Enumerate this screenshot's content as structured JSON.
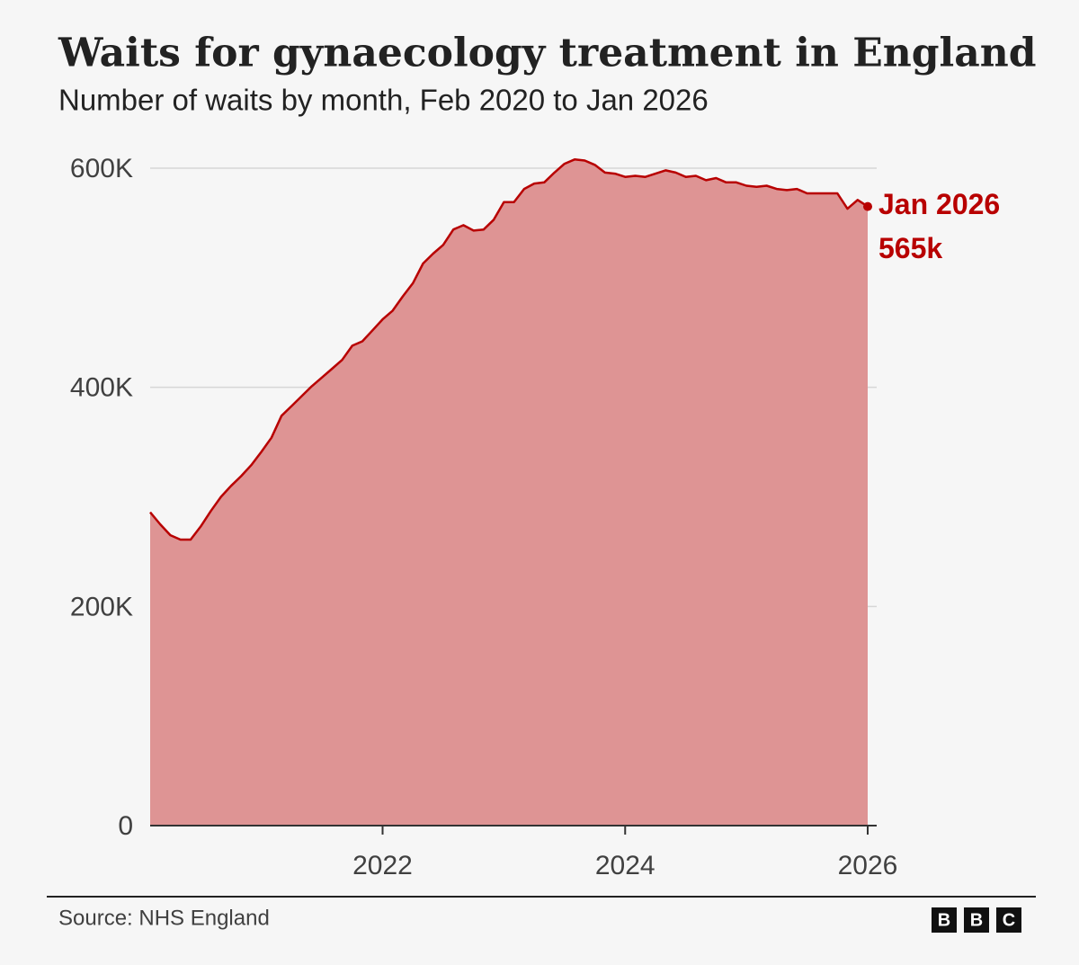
{
  "chart_data": {
    "type": "area",
    "title": "Waits for gynaecology treatment in England",
    "subtitle": "Number of waits by month, Feb 2020 to Jan 2026",
    "x": [
      "2020-02",
      "2020-03",
      "2020-04",
      "2020-05",
      "2020-06",
      "2020-07",
      "2020-08",
      "2020-09",
      "2020-10",
      "2020-11",
      "2020-12",
      "2021-01",
      "2021-02",
      "2021-03",
      "2021-04",
      "2021-05",
      "2021-06",
      "2021-07",
      "2021-08",
      "2021-09",
      "2021-10",
      "2021-11",
      "2021-12",
      "2022-01",
      "2022-02",
      "2022-03",
      "2022-04",
      "2022-05",
      "2022-06",
      "2022-07",
      "2022-08",
      "2022-09",
      "2022-10",
      "2022-11",
      "2022-12",
      "2023-01",
      "2023-02",
      "2023-03",
      "2023-04",
      "2023-05",
      "2023-06",
      "2023-07",
      "2023-08",
      "2023-09",
      "2023-10",
      "2023-11",
      "2023-12",
      "2024-01",
      "2024-02",
      "2024-03",
      "2024-04",
      "2024-05",
      "2024-06",
      "2024-07",
      "2024-08",
      "2024-09",
      "2024-10",
      "2024-11",
      "2024-12",
      "2025-01",
      "2025-02",
      "2025-03",
      "2025-04",
      "2025-05",
      "2025-06",
      "2025-07",
      "2025-08",
      "2025-09",
      "2025-10",
      "2025-11",
      "2025-12",
      "2026-01"
    ],
    "series": [
      {
        "name": "Waits",
        "color": "#b80000",
        "fill": "#de9494",
        "values": [
          286000,
          275000,
          265000,
          261000,
          261000,
          273000,
          287000,
          300000,
          310000,
          319000,
          329000,
          341000,
          354000,
          374000,
          383000,
          392000,
          401000,
          409000,
          417000,
          425000,
          438000,
          442000,
          452000,
          462000,
          470000,
          483000,
          495000,
          513000,
          522000,
          530000,
          544000,
          548000,
          543000,
          544000,
          553000,
          569000,
          569000,
          581000,
          586000,
          587000,
          596000,
          604000,
          608000,
          607000,
          603000,
          596000,
          595000,
          592000,
          593000,
          592000,
          595000,
          598000,
          596000,
          592000,
          593000,
          589000,
          591000,
          587000,
          587000,
          584000,
          583000,
          584000,
          581000,
          580000,
          581000,
          577000,
          577000,
          577000,
          577000,
          563000,
          571000,
          565000
        ]
      }
    ],
    "end_label": {
      "date_label": "Jan 2026",
      "value_label": "565k"
    },
    "ylim": [
      0,
      600000
    ],
    "yticks": [
      0,
      {
        "value": 200000,
        "label": "200K"
      },
      {
        "value": 400000,
        "label": "400K"
      },
      {
        "value": 600000,
        "label": "600K"
      }
    ],
    "xticks": [
      2022,
      2024,
      2026
    ],
    "grid": true,
    "source": "Source: NHS England",
    "logo": [
      "B",
      "B",
      "C"
    ]
  }
}
